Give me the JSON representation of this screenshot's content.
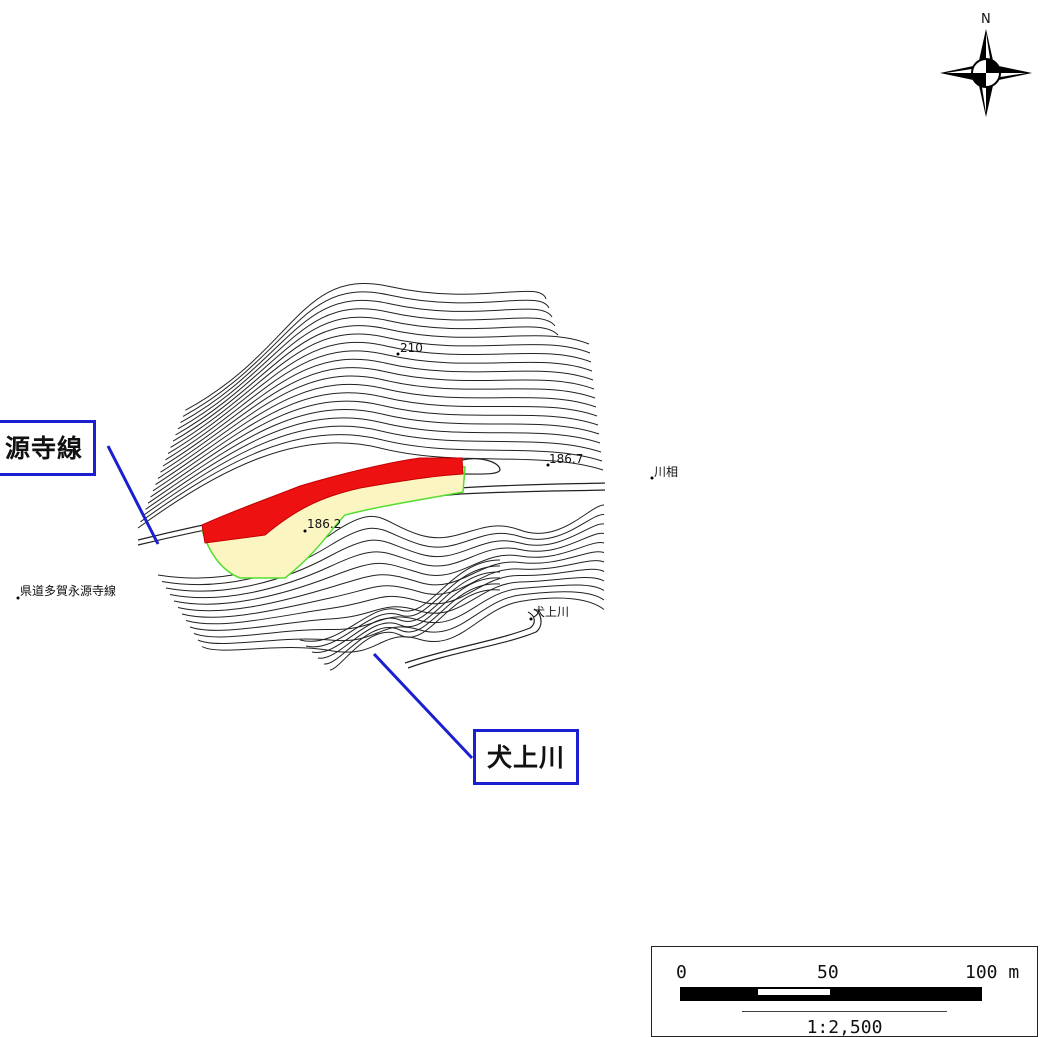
{
  "compass": {
    "north_label": "N",
    "icon": "compass-rose-icon"
  },
  "callouts": {
    "road_label": "源寺線",
    "river_label": "犬上川"
  },
  "map_labels": {
    "elevation_210": "210",
    "elevation_186_7": "186.7",
    "elevation_186_2": "186.2",
    "place_kawaai": "川相",
    "road_name": "県道多賀永源寺線",
    "river_name": "犬上川"
  },
  "scale": {
    "tick_0": "0",
    "tick_50": "50",
    "tick_100": "100 m",
    "ratio": "1:2,500"
  },
  "colors": {
    "hazard_red": "#ee1111",
    "area_fill": "#fbf5c2",
    "area_outline": "#55dd33",
    "callout_border": "#1a1fd0"
  }
}
